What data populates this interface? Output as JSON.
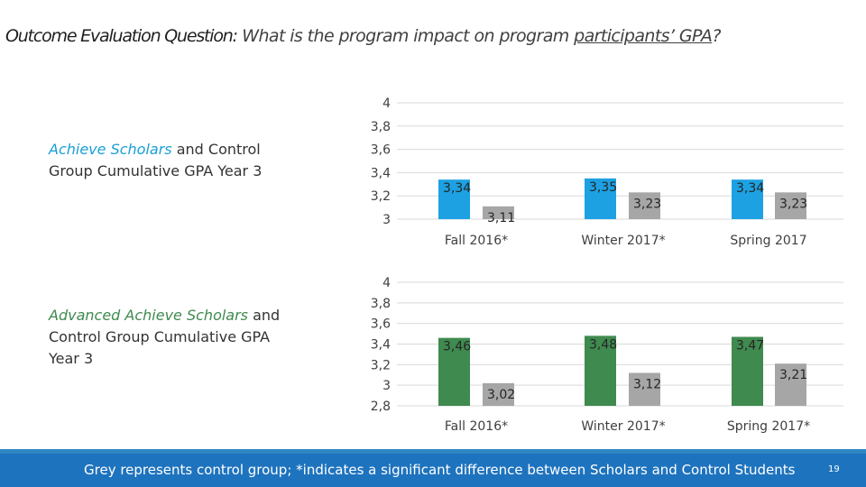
{
  "slide": {
    "title_prefix": "Outcome Evaluation Question:",
    "title_question_before": " What is the program impact on program ",
    "title_underlined": "participants’ GPA",
    "title_question_after": "?",
    "footer_note": "Grey represents control group; *indicates a significant difference between Scholars and Control Students",
    "page_number": "19"
  },
  "labels": {
    "chart1": {
      "highlight": "Achieve Scholars",
      "rest": " and Control Group Cumulative GPA Year 3"
    },
    "chart2": {
      "highlight": "Advanced Achieve Scholars",
      "rest": " and Control Group Cumulative GPA Year 3"
    }
  },
  "colors": {
    "scholars_blue": "#1da1e2",
    "scholars_green": "#3f8a4f",
    "control_grey": "#a6a6a6",
    "footer": "#1e73be"
  },
  "chart_data": [
    {
      "type": "bar",
      "categories": [
        "Fall 2016*",
        "Winter 2017*",
        "Spring 2017"
      ],
      "series": [
        {
          "values": [
            3.34,
            3.35,
            3.34
          ],
          "labels": [
            "3,34",
            "3,35",
            "3,34"
          ],
          "color": "#1da1e2"
        },
        {
          "values": [
            3.11,
            3.23,
            3.23
          ],
          "labels": [
            "3,11",
            "3,23",
            "3,23"
          ],
          "color": "#a6a6a6"
        }
      ],
      "yticks": [
        "4",
        "3,8",
        "3,6",
        "3,4",
        "3,2",
        "3"
      ],
      "ylim": [
        3,
        4
      ],
      "grid": true
    },
    {
      "type": "bar",
      "categories": [
        "Fall 2016*",
        "Winter 2017*",
        "Spring 2017*"
      ],
      "series": [
        {
          "values": [
            3.46,
            3.48,
            3.47
          ],
          "labels": [
            "3,46",
            "3,48",
            "3,47"
          ],
          "color": "#3f8a4f"
        },
        {
          "values": [
            3.02,
            3.12,
            3.21
          ],
          "labels": [
            "3,02",
            "3,12",
            "3,21"
          ],
          "color": "#a6a6a6"
        }
      ],
      "yticks": [
        "4",
        "3,8",
        "3,6",
        "3,4",
        "3,2",
        "3",
        "2,8"
      ],
      "ylim": [
        2.8,
        4
      ],
      "grid": true
    }
  ]
}
